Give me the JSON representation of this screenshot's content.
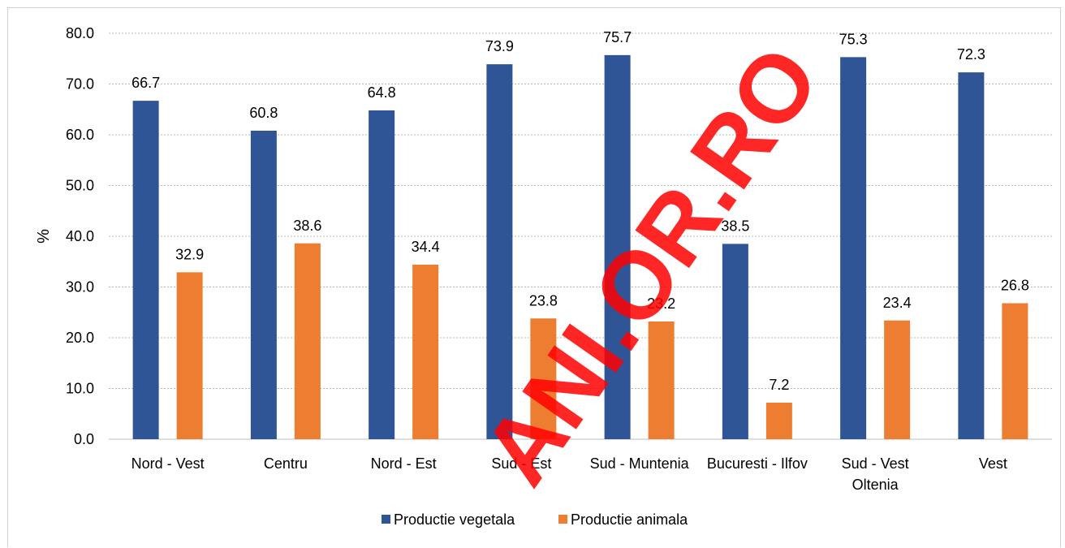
{
  "chart_data": {
    "type": "bar",
    "categories": [
      [
        "Nord - Vest"
      ],
      [
        "Centru"
      ],
      [
        "Nord - Est"
      ],
      [
        "Sud - Est"
      ],
      [
        "Sud - Muntenia"
      ],
      [
        "Bucuresti - Ilfov"
      ],
      [
        "Sud - Vest",
        "Oltenia"
      ],
      [
        "Vest"
      ]
    ],
    "series": [
      {
        "name": "Productie vegetala",
        "color": "#2f5597",
        "values": [
          66.7,
          60.8,
          64.8,
          73.9,
          75.7,
          38.5,
          75.3,
          72.3
        ],
        "labels": [
          "66.7",
          "60.8",
          "64.8",
          "73.9",
          "75.7",
          "38.5",
          "75.3",
          "72.3"
        ]
      },
      {
        "name": "Productie animala",
        "color": "#ed7d31",
        "values": [
          32.9,
          38.6,
          34.4,
          23.8,
          23.2,
          7.2,
          23.4,
          26.8
        ],
        "labels": [
          "32.9",
          "38.6",
          "34.4",
          "23.8",
          "23.2",
          "7.2",
          "23.4",
          "26.8"
        ]
      }
    ],
    "ylabel": "%",
    "ylim": [
      0,
      80
    ],
    "yticks": [
      0,
      10,
      20,
      30,
      40,
      50,
      60,
      70,
      80
    ],
    "ytick_labels": [
      "0.0",
      "10.0",
      "20.0",
      "30.0",
      "40.0",
      "50.0",
      "60.0",
      "70.0",
      "80.0"
    ],
    "grid": true,
    "legend_position": "bottom"
  },
  "watermark": {
    "text": "ANI.OR.RO",
    "color": "#ff0000"
  }
}
